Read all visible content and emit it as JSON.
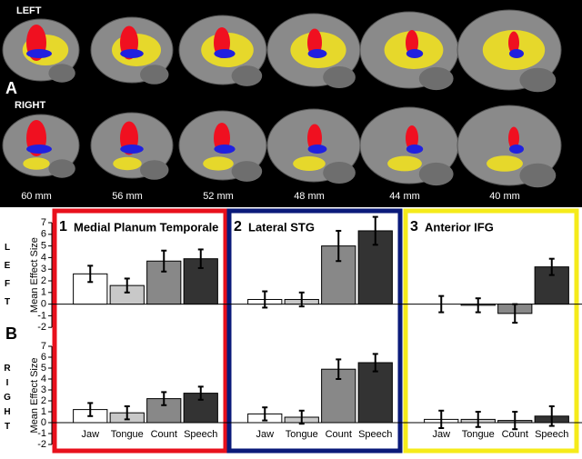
{
  "panel_a": {
    "label": "A",
    "rows": [
      "LEFT",
      "RIGHT"
    ],
    "slices": [
      "60 mm",
      "56 mm",
      "52 mm",
      "48 mm",
      "44 mm",
      "40 mm"
    ]
  },
  "chart_data": {
    "type": "bar",
    "label": "B",
    "ylabel": "Mean Effect Size",
    "ylim": [
      -2,
      7
    ],
    "yticks": [
      -2,
      -1,
      0,
      1,
      2,
      3,
      4,
      5,
      6,
      7
    ],
    "categories": [
      "Jaw",
      "Tongue",
      "Count",
      "Speech"
    ],
    "colors": [
      "#ffffff",
      "#c8c8c8",
      "#888888",
      "#333333"
    ],
    "rows": [
      "LEFT",
      "RIGHT"
    ],
    "panels": [
      {
        "number": "1",
        "title": "Medial Planum Temporale",
        "frame": "#e8101c",
        "values": [
          [
            2.6,
            1.6,
            3.7,
            3.9
          ],
          [
            1.2,
            0.9,
            2.2,
            2.7
          ]
        ],
        "errors": [
          [
            0.7,
            0.6,
            0.9,
            0.8
          ],
          [
            0.6,
            0.6,
            0.6,
            0.6
          ]
        ]
      },
      {
        "number": "2",
        "title": "Lateral STG",
        "frame": "#0a1a7a",
        "values": [
          [
            0.4,
            0.4,
            5.0,
            6.3
          ],
          [
            0.8,
            0.5,
            4.9,
            5.5
          ]
        ],
        "errors": [
          [
            0.7,
            0.6,
            1.3,
            1.2
          ],
          [
            0.6,
            0.6,
            0.9,
            0.8
          ]
        ]
      },
      {
        "number": "3",
        "title": "Anterior IFG",
        "frame": "#f5eb1a",
        "values": [
          [
            0.0,
            -0.1,
            -0.8,
            3.2
          ],
          [
            0.3,
            0.3,
            0.2,
            0.6
          ]
        ],
        "errors": [
          [
            0.7,
            0.6,
            0.8,
            0.7
          ],
          [
            0.8,
            0.7,
            0.8,
            0.9
          ]
        ]
      }
    ]
  }
}
